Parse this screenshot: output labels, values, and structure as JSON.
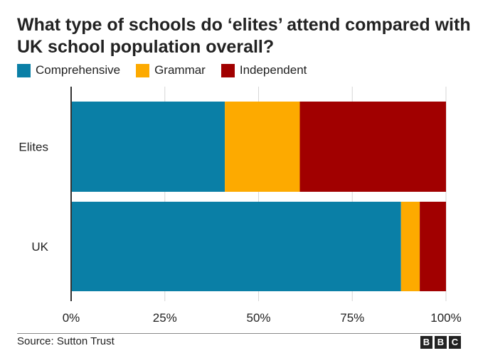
{
  "chart_data": {
    "type": "bar",
    "orientation": "horizontal",
    "stacked": true,
    "title": "What type of schools do ‘elites’ attend compared with UK school population overall?",
    "categories": [
      "Elites",
      "UK"
    ],
    "series": [
      {
        "name": "Comprehensive",
        "color": "#0a7fa6",
        "values": [
          41,
          88
        ]
      },
      {
        "name": "Grammar",
        "color": "#fdaa00",
        "values": [
          20,
          5
        ]
      },
      {
        "name": "Independent",
        "color": "#a10000",
        "values": [
          39,
          7
        ]
      }
    ],
    "xlim": [
      0,
      100
    ],
    "xticks": [
      0,
      25,
      50,
      75,
      100
    ],
    "xtick_labels": [
      "0%",
      "25%",
      "50%",
      "75%",
      "100%"
    ],
    "legend_position": "top-left",
    "grid": true
  },
  "footer": {
    "source": "Source: Sutton Trust",
    "brand_letters": [
      "B",
      "B",
      "C"
    ]
  }
}
